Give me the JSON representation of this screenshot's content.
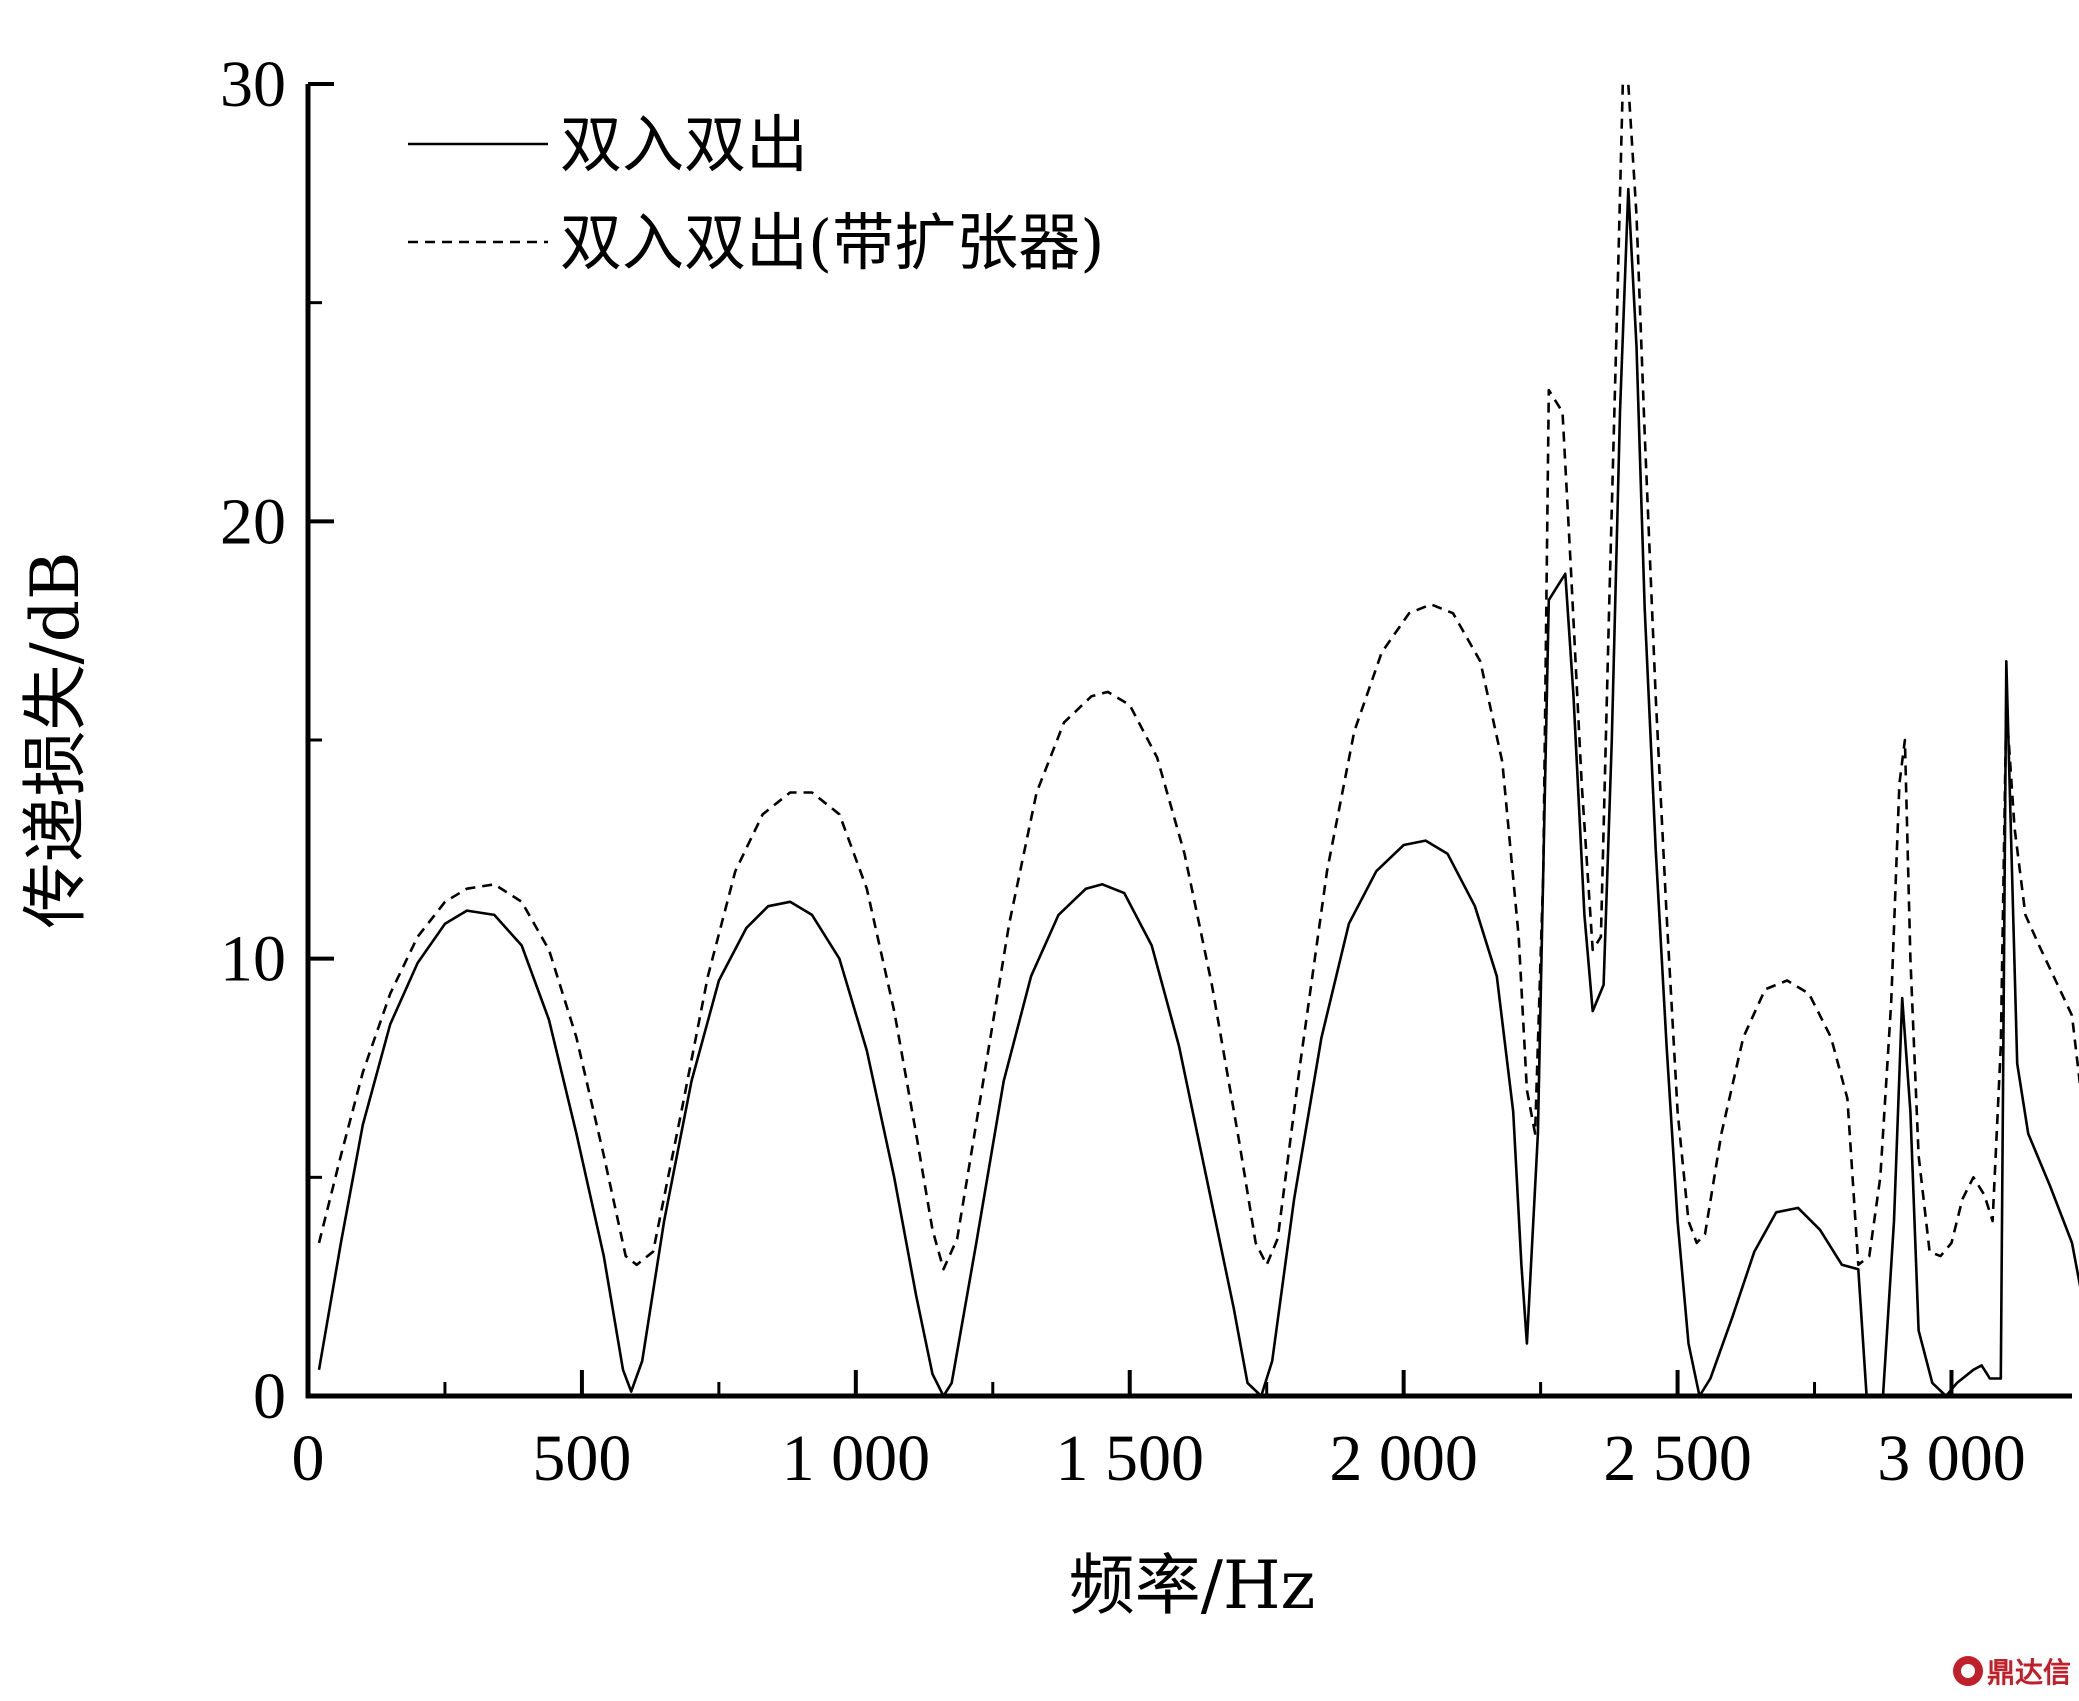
{
  "chart_data": {
    "type": "line",
    "xlabel": "频率/Hz",
    "ylabel": "传递损失/dB",
    "xlim": [
      0,
      3220
    ],
    "ylim": [
      0,
      30
    ],
    "x_ticks": [
      0,
      500,
      1000,
      1500,
      2000,
      2500,
      3000
    ],
    "x_tick_labels": [
      "0",
      "500",
      "1 000",
      "1 500",
      "2 000",
      "2 500",
      "3 000"
    ],
    "y_ticks": [
      0,
      10,
      20,
      30
    ],
    "y_tick_labels": [
      "0",
      "10",
      "20",
      "30"
    ],
    "legend_position": "top-left",
    "grid": false,
    "series": [
      {
        "name": "双入双出",
        "style": "solid",
        "color": "#000000",
        "points": [
          [
            20,
            0.6
          ],
          [
            60,
            3.5
          ],
          [
            100,
            6.2
          ],
          [
            150,
            8.5
          ],
          [
            200,
            9.9
          ],
          [
            250,
            10.8
          ],
          [
            290,
            11.1
          ],
          [
            340,
            11.0
          ],
          [
            390,
            10.3
          ],
          [
            440,
            8.6
          ],
          [
            490,
            6.0
          ],
          [
            540,
            3.2
          ],
          [
            575,
            0.6
          ],
          [
            590,
            0.1
          ],
          [
            610,
            0.8
          ],
          [
            650,
            4.0
          ],
          [
            700,
            7.2
          ],
          [
            750,
            9.5
          ],
          [
            800,
            10.7
          ],
          [
            840,
            11.2
          ],
          [
            880,
            11.3
          ],
          [
            920,
            11.0
          ],
          [
            970,
            10.0
          ],
          [
            1020,
            7.9
          ],
          [
            1070,
            5.0
          ],
          [
            1110,
            2.3
          ],
          [
            1140,
            0.5
          ],
          [
            1160,
            0.0
          ],
          [
            1175,
            0.3
          ],
          [
            1220,
            3.5
          ],
          [
            1270,
            7.2
          ],
          [
            1320,
            9.6
          ],
          [
            1370,
            11.0
          ],
          [
            1420,
            11.6
          ],
          [
            1450,
            11.7
          ],
          [
            1490,
            11.5
          ],
          [
            1540,
            10.3
          ],
          [
            1590,
            8.0
          ],
          [
            1640,
            5.0
          ],
          [
            1690,
            2.0
          ],
          [
            1715,
            0.3
          ],
          [
            1740,
            0.0
          ],
          [
            1760,
            0.8
          ],
          [
            1800,
            4.5
          ],
          [
            1850,
            8.2
          ],
          [
            1900,
            10.8
          ],
          [
            1950,
            12.0
          ],
          [
            2000,
            12.6
          ],
          [
            2040,
            12.7
          ],
          [
            2080,
            12.4
          ],
          [
            2130,
            11.2
          ],
          [
            2170,
            9.6
          ],
          [
            2200,
            6.5
          ],
          [
            2215,
            3.0
          ],
          [
            2225,
            1.2
          ],
          [
            2245,
            6.0
          ],
          [
            2265,
            18.2
          ],
          [
            2280,
            18.5
          ],
          [
            2295,
            18.8
          ],
          [
            2310,
            16.0
          ],
          [
            2330,
            11.0
          ],
          [
            2345,
            8.8
          ],
          [
            2365,
            9.4
          ],
          [
            2380,
            15.0
          ],
          [
            2395,
            22.5
          ],
          [
            2410,
            27.6
          ],
          [
            2425,
            24.0
          ],
          [
            2440,
            18.0
          ],
          [
            2460,
            12.5
          ],
          [
            2480,
            8.0
          ],
          [
            2500,
            4.0
          ],
          [
            2520,
            1.2
          ],
          [
            2540,
            0.0
          ],
          [
            2560,
            0.4
          ],
          [
            2600,
            1.8
          ],
          [
            2640,
            3.3
          ],
          [
            2680,
            4.2
          ],
          [
            2720,
            4.3
          ],
          [
            2760,
            3.8
          ],
          [
            2800,
            3.0
          ],
          [
            2830,
            2.9
          ],
          [
            2845,
            0.0
          ],
          [
            2860,
            0.0
          ],
          [
            2875,
            0.0
          ],
          [
            2895,
            4.0
          ],
          [
            2910,
            9.1
          ],
          [
            2925,
            6.5
          ],
          [
            2940,
            1.5
          ],
          [
            2965,
            0.3
          ],
          [
            2990,
            0.0
          ],
          [
            3010,
            0.3
          ],
          [
            3040,
            0.6
          ],
          [
            3055,
            0.7
          ],
          [
            3065,
            0.5
          ],
          [
            3070,
            0.4
          ],
          [
            3080,
            0.4
          ],
          [
            3090,
            0.4
          ],
          [
            3100,
            16.8
          ],
          [
            3120,
            7.6
          ],
          [
            3140,
            6.0
          ],
          [
            3180,
            4.8
          ],
          [
            3220,
            3.5
          ],
          [
            3250,
            1.5
          ],
          [
            3265,
            0.5
          ]
        ]
      },
      {
        "name": "双入双出(带扩张器)",
        "style": "dashed",
        "color": "#000000",
        "points": [
          [
            20,
            3.5
          ],
          [
            60,
            5.5
          ],
          [
            100,
            7.4
          ],
          [
            150,
            9.2
          ],
          [
            200,
            10.5
          ],
          [
            250,
            11.3
          ],
          [
            290,
            11.6
          ],
          [
            340,
            11.7
          ],
          [
            390,
            11.3
          ],
          [
            440,
            10.2
          ],
          [
            490,
            8.2
          ],
          [
            540,
            5.5
          ],
          [
            580,
            3.2
          ],
          [
            600,
            3.0
          ],
          [
            630,
            3.3
          ],
          [
            680,
            6.4
          ],
          [
            730,
            9.6
          ],
          [
            780,
            12.0
          ],
          [
            830,
            13.3
          ],
          [
            880,
            13.8
          ],
          [
            920,
            13.8
          ],
          [
            970,
            13.3
          ],
          [
            1020,
            11.6
          ],
          [
            1070,
            8.8
          ],
          [
            1110,
            6.0
          ],
          [
            1140,
            3.8
          ],
          [
            1160,
            2.9
          ],
          [
            1185,
            3.6
          ],
          [
            1230,
            7.0
          ],
          [
            1280,
            10.8
          ],
          [
            1330,
            13.8
          ],
          [
            1380,
            15.4
          ],
          [
            1430,
            16.0
          ],
          [
            1460,
            16.1
          ],
          [
            1500,
            15.8
          ],
          [
            1550,
            14.6
          ],
          [
            1600,
            12.4
          ],
          [
            1650,
            9.4
          ],
          [
            1700,
            5.8
          ],
          [
            1730,
            3.5
          ],
          [
            1750,
            3.0
          ],
          [
            1770,
            3.6
          ],
          [
            1810,
            7.5
          ],
          [
            1860,
            12.0
          ],
          [
            1910,
            15.2
          ],
          [
            1960,
            17.0
          ],
          [
            2010,
            17.9
          ],
          [
            2050,
            18.1
          ],
          [
            2090,
            17.9
          ],
          [
            2140,
            16.8
          ],
          [
            2180,
            14.5
          ],
          [
            2210,
            10.5
          ],
          [
            2225,
            7.0
          ],
          [
            2240,
            6.0
          ],
          [
            2255,
            12.0
          ],
          [
            2265,
            23.0
          ],
          [
            2275,
            22.8
          ],
          [
            2290,
            22.5
          ],
          [
            2305,
            19.0
          ],
          [
            2325,
            14.0
          ],
          [
            2345,
            10.2
          ],
          [
            2360,
            10.5
          ],
          [
            2375,
            18.0
          ],
          [
            2390,
            25.0
          ],
          [
            2400,
            30.0
          ],
          [
            2410,
            30.0
          ],
          [
            2425,
            27.0
          ],
          [
            2440,
            22.0
          ],
          [
            2460,
            16.0
          ],
          [
            2480,
            11.0
          ],
          [
            2500,
            6.5
          ],
          [
            2520,
            4.0
          ],
          [
            2535,
            3.5
          ],
          [
            2550,
            3.7
          ],
          [
            2580,
            6.0
          ],
          [
            2620,
            8.2
          ],
          [
            2660,
            9.3
          ],
          [
            2700,
            9.5
          ],
          [
            2740,
            9.2
          ],
          [
            2780,
            8.2
          ],
          [
            2810,
            6.8
          ],
          [
            2830,
            3.0
          ],
          [
            2850,
            3.2
          ],
          [
            2870,
            5.0
          ],
          [
            2890,
            9.0
          ],
          [
            2905,
            14.0
          ],
          [
            2915,
            15.0
          ],
          [
            2925,
            10.0
          ],
          [
            2940,
            5.5
          ],
          [
            2960,
            3.3
          ],
          [
            2980,
            3.2
          ],
          [
            3000,
            3.5
          ],
          [
            3020,
            4.5
          ],
          [
            3040,
            5.0
          ],
          [
            3060,
            4.6
          ],
          [
            3075,
            4.0
          ],
          [
            3090,
            8.0
          ],
          [
            3100,
            15.8
          ],
          [
            3115,
            13.0
          ],
          [
            3135,
            11.0
          ],
          [
            3160,
            10.3
          ],
          [
            3190,
            9.5
          ],
          [
            3220,
            8.7
          ],
          [
            3245,
            6.0
          ],
          [
            3265,
            3.5
          ]
        ]
      }
    ]
  },
  "watermark": {
    "text": "鼎达信",
    "color": "#c0202a"
  }
}
